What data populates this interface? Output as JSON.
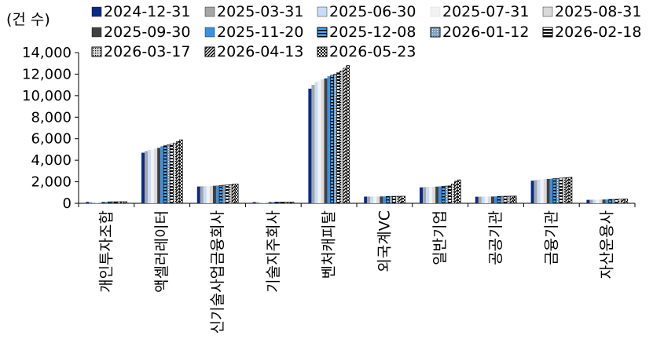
{
  "chart_data": {
    "type": "bar",
    "ylabel": "(건 수)",
    "ylim": [
      0,
      14000
    ],
    "yticks": [
      "0",
      "2,000",
      "4,000",
      "6,000",
      "8,000",
      "10,000",
      "12,000",
      "14,000"
    ],
    "ytick_values": [
      0,
      2000,
      4000,
      6000,
      8000,
      10000,
      12000,
      14000
    ],
    "legend_position": "top",
    "categories": [
      "개인투자조합",
      "액셀러레이터",
      "신기술사업금융회사",
      "기술지주회사",
      "벤처캐피탈",
      "외국계VC",
      "일반기업",
      "공공기관",
      "금융기관",
      "자산운용사"
    ],
    "series": [
      {
        "name": "2024-12-31",
        "color": "#0a2a8a",
        "pattern": "solid",
        "values": [
          130,
          4700,
          1560,
          115,
          10650,
          620,
          1480,
          610,
          2100,
          320
        ]
      },
      {
        "name": "2025-03-31",
        "color": "#a6a6a6",
        "pattern": "solid",
        "values": [
          132,
          4850,
          1580,
          116,
          11000,
          625,
          1500,
          615,
          2150,
          330
        ]
      },
      {
        "name": "2025-06-30",
        "color": "#c5def8",
        "pattern": "solid",
        "values": [
          134,
          4950,
          1600,
          117,
          11250,
          630,
          1520,
          620,
          2200,
          340
        ]
      },
      {
        "name": "2025-07-31",
        "color": "#f2f2f2",
        "pattern": "solid",
        "values": [
          135,
          5000,
          1610,
          118,
          11400,
          632,
          1530,
          625,
          2220,
          345
        ]
      },
      {
        "name": "2025-08-31",
        "color": "#d9d9d9",
        "pattern": "solid",
        "values": [
          136,
          5080,
          1620,
          118,
          11500,
          635,
          1540,
          628,
          2240,
          350
        ]
      },
      {
        "name": "2025-09-30",
        "color": "#404040",
        "pattern": "solid",
        "values": [
          137,
          5150,
          1630,
          119,
          11600,
          637,
          1550,
          630,
          2260,
          352
        ]
      },
      {
        "name": "2025-11-20",
        "color": "#3d8fe0",
        "pattern": "solid",
        "values": [
          138,
          5300,
          1650,
          120,
          11800,
          640,
          1570,
          640,
          2290,
          360
        ]
      },
      {
        "name": "2025-12-08",
        "color": "#4aa3e8",
        "pattern": "hstripe",
        "values": [
          139,
          5350,
          1660,
          120,
          11900,
          642,
          1580,
          645,
          2300,
          362
        ]
      },
      {
        "name": "2026-01-12",
        "color": "#7f9fbf",
        "pattern": "dots",
        "values": [
          140,
          5420,
          1680,
          121,
          12000,
          645,
          1600,
          650,
          2320,
          365
        ]
      },
      {
        "name": "2026-02-18",
        "color": "#000000",
        "pattern": "hstripe",
        "values": [
          142,
          5500,
          1700,
          122,
          12150,
          648,
          1620,
          655,
          2340,
          370
        ]
      },
      {
        "name": "2026-03-17",
        "color": "#808080",
        "pattern": "dots",
        "values": [
          144,
          5600,
          1730,
          123,
          12300,
          652,
          1800,
          660,
          2360,
          380
        ]
      },
      {
        "name": "2026-04-13",
        "color": "#000000",
        "pattern": "diag",
        "values": [
          147,
          5750,
          1770,
          124,
          12550,
          656,
          2050,
          668,
          2390,
          390
        ]
      },
      {
        "name": "2026-05-23",
        "color": "#000000",
        "pattern": "check",
        "values": [
          150,
          5900,
          1800,
          125,
          12800,
          660,
          2180,
          675,
          2420,
          400
        ]
      }
    ]
  }
}
